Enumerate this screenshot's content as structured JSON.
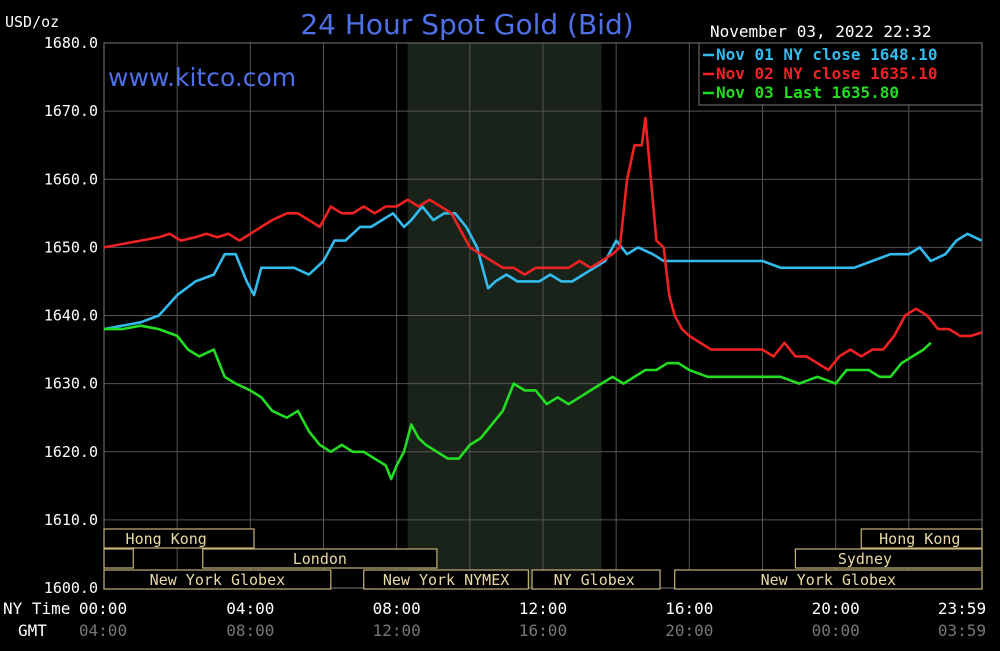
{
  "chart_data": {
    "type": "line",
    "title": "24 Hour Spot Gold (Bid)",
    "watermark": "www.kitco.com",
    "ylabel": "USD/oz",
    "timestamp": "November 03, 2022 22:32",
    "ylim": [
      1600,
      1680
    ],
    "xlim": [
      0,
      24
    ],
    "grid": true,
    "legend_position": "top-right",
    "y_ticks": [
      "1680.0",
      "1670.0",
      "1660.0",
      "1650.0",
      "1640.0",
      "1630.0",
      "1620.0",
      "1610.0",
      "1600.0"
    ],
    "x_ticks": [
      {
        "ny": "00:00",
        "gmt": "04:00"
      },
      {
        "ny": "04:00",
        "gmt": "08:00"
      },
      {
        "ny": "08:00",
        "gmt": "12:00"
      },
      {
        "ny": "12:00",
        "gmt": "16:00"
      },
      {
        "ny": "16:00",
        "gmt": "20:00"
      },
      {
        "ny": "20:00",
        "gmt": "00:00"
      },
      {
        "ny": "23:59",
        "gmt": "03:59"
      }
    ],
    "axis_row_labels": {
      "ny": "NY Time",
      "gmt": "GMT"
    },
    "shaded_session": [
      8.3,
      13.6
    ],
    "series": [
      {
        "name": "Nov 01 NY close 1648.10",
        "color": "#33bbee",
        "x": [
          0,
          0.5,
          1,
          1.5,
          2,
          2.5,
          3,
          3.3,
          3.6,
          3.9,
          4.1,
          4.3,
          4.7,
          5.2,
          5.6,
          6,
          6.3,
          6.6,
          7,
          7.3,
          7.6,
          7.9,
          8.2,
          8.4,
          8.7,
          9,
          9.3,
          9.6,
          9.9,
          10.2,
          10.5,
          10.7,
          11,
          11.3,
          11.6,
          11.9,
          12.2,
          12.5,
          12.8,
          13.1,
          13.4,
          13.7,
          14,
          14.3,
          14.6,
          15,
          15.3,
          15.6,
          15.9,
          16.2,
          16.5,
          17,
          17.5,
          18,
          18.5,
          19,
          19.5,
          20,
          20.5,
          21,
          21.5,
          22,
          22.3,
          22.6,
          23,
          23.3,
          23.6,
          23.99
        ],
        "y": [
          1638,
          1638.5,
          1639,
          1640,
          1643,
          1645,
          1646,
          1649,
          1649,
          1645,
          1643,
          1647,
          1647,
          1647,
          1646,
          1648,
          1651,
          1651,
          1653,
          1653,
          1654,
          1655,
          1653,
          1654,
          1656,
          1654,
          1655,
          1655,
          1653,
          1650,
          1644,
          1645,
          1646,
          1645,
          1645,
          1645,
          1646,
          1645,
          1645,
          1646,
          1647,
          1648,
          1651,
          1649,
          1650,
          1649,
          1648,
          1648,
          1648,
          1648,
          1648,
          1648,
          1648,
          1648,
          1647,
          1647,
          1647,
          1647,
          1647,
          1648,
          1649,
          1649,
          1650,
          1648,
          1649,
          1651,
          1652,
          1651
        ]
      },
      {
        "name": "Nov 02 NY close 1635.10",
        "color": "#ee2222",
        "x": [
          0,
          0.5,
          1,
          1.5,
          1.8,
          2.1,
          2.5,
          2.8,
          3.1,
          3.4,
          3.7,
          4,
          4.3,
          4.6,
          5,
          5.3,
          5.6,
          5.9,
          6.2,
          6.5,
          6.8,
          7.1,
          7.4,
          7.7,
          8,
          8.3,
          8.6,
          8.9,
          9.2,
          9.5,
          9.8,
          10,
          10.3,
          10.6,
          10.9,
          11.2,
          11.5,
          11.8,
          12.1,
          12.4,
          12.7,
          13,
          13.3,
          13.6,
          13.9,
          14.1,
          14.3,
          14.5,
          14.7,
          14.8,
          14.95,
          15.1,
          15.3,
          15.45,
          15.6,
          15.8,
          16,
          16.3,
          16.6,
          17,
          17.5,
          18,
          18.3,
          18.6,
          18.9,
          19.2,
          19.5,
          19.8,
          20.1,
          20.4,
          20.7,
          21,
          21.3,
          21.6,
          21.9,
          22.2,
          22.5,
          22.8,
          23.1,
          23.4,
          23.7,
          23.99
        ],
        "y": [
          1650,
          1650.5,
          1651,
          1651.5,
          1652,
          1651,
          1651.5,
          1652,
          1651.5,
          1652,
          1651,
          1652,
          1653,
          1654,
          1655,
          1655,
          1654,
          1653,
          1656,
          1655,
          1655,
          1656,
          1655,
          1656,
          1656,
          1657,
          1656,
          1657,
          1656,
          1655,
          1652,
          1650,
          1649,
          1648,
          1647,
          1647,
          1646,
          1647,
          1647,
          1647,
          1647,
          1648,
          1647,
          1648,
          1649,
          1650,
          1660,
          1665,
          1665,
          1669,
          1660,
          1651,
          1650,
          1643,
          1640,
          1638,
          1637,
          1636,
          1635,
          1635,
          1635,
          1635,
          1634,
          1636,
          1634,
          1634,
          1633,
          1632,
          1634,
          1635,
          1634,
          1635,
          1635,
          1637,
          1640,
          1641,
          1640,
          1638,
          1638,
          1637,
          1637,
          1637.5
        ]
      },
      {
        "name": "Nov 03 Last 1635.80",
        "color": "#22dd22",
        "x": [
          0,
          0.5,
          1,
          1.5,
          2,
          2.3,
          2.6,
          3,
          3.3,
          3.6,
          4,
          4.3,
          4.6,
          5,
          5.3,
          5.6,
          5.9,
          6.2,
          6.5,
          6.8,
          7.1,
          7.4,
          7.7,
          7.85,
          8,
          8.2,
          8.4,
          8.6,
          8.8,
          9.1,
          9.4,
          9.7,
          10,
          10.3,
          10.6,
          10.9,
          11.2,
          11.5,
          11.8,
          12.1,
          12.4,
          12.7,
          13,
          13.3,
          13.6,
          13.9,
          14.2,
          14.5,
          14.8,
          15.1,
          15.4,
          15.7,
          16,
          16.5,
          17,
          17.5,
          18,
          18.5,
          19,
          19.5,
          20,
          20.3,
          20.6,
          20.9,
          21.2,
          21.5,
          21.8,
          22.1,
          22.4,
          22.6
        ],
        "y": [
          1638,
          1638,
          1638.5,
          1638,
          1637,
          1635,
          1634,
          1635,
          1631,
          1630,
          1629,
          1628,
          1626,
          1625,
          1626,
          1623,
          1621,
          1620,
          1621,
          1620,
          1620,
          1619,
          1618,
          1616,
          1618,
          1620,
          1624,
          1622,
          1621,
          1620,
          1619,
          1619,
          1621,
          1622,
          1624,
          1626,
          1630,
          1629,
          1629,
          1627,
          1628,
          1627,
          1628,
          1629,
          1630,
          1631,
          1630,
          1631,
          1632,
          1632,
          1633,
          1633,
          1632,
          1631,
          1631,
          1631,
          1631,
          1631,
          1630,
          1631,
          1630,
          1632,
          1632,
          1632,
          1631,
          1631,
          1633,
          1634,
          1635,
          1636
        ]
      }
    ],
    "session_rows": [
      [
        {
          "label": "Hong Kong",
          "start": 0,
          "end": 4.1,
          "text_at": 1.7
        },
        {
          "label": "Hong Kong",
          "start": 20.7,
          "end": 24,
          "text_at": 22.3
        }
      ],
      [
        {
          "label": "",
          "start": 0,
          "end": 0.8,
          "text_at": null
        },
        {
          "label": "London",
          "start": 2.7,
          "end": 9.1,
          "text_at": 5.9
        },
        {
          "label": "Sydney",
          "start": 18.9,
          "end": 24,
          "text_at": 20.8
        }
      ],
      [
        {
          "label": "New York Globex",
          "start": 0,
          "end": 6.2,
          "text_at": 3.1
        },
        {
          "label": "New York NYMEX",
          "start": 7.1,
          "end": 11.6,
          "text_at": 9.35
        },
        {
          "label": "NY Globex",
          "start": 11.7,
          "end": 15.2,
          "text_at": 13.4
        },
        {
          "label": "New York Globex",
          "start": 15.6,
          "end": 24,
          "text_at": 19.8
        }
      ]
    ]
  }
}
